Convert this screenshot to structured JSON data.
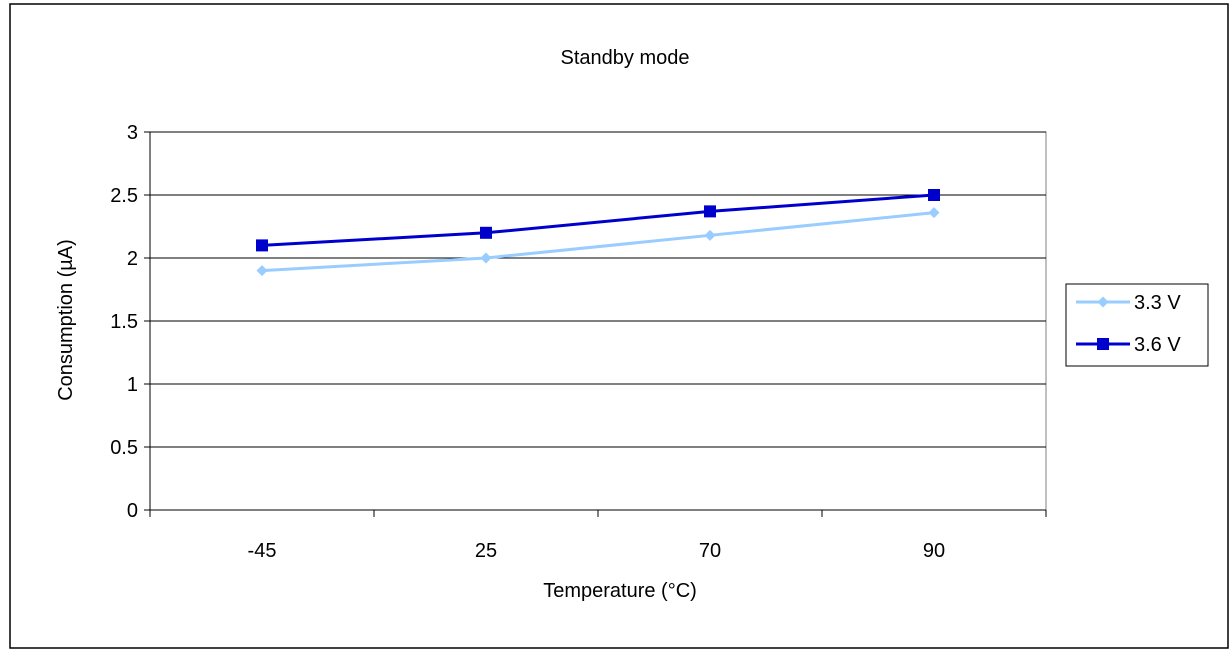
{
  "chart_data": {
    "type": "line",
    "title": "Standby mode",
    "xlabel": "Temperature (°C)",
    "ylabel": "Consumption (µA)",
    "categories": [
      "-45",
      "25",
      "70",
      "90"
    ],
    "ylim": [
      0,
      3
    ],
    "yticks": [
      "0",
      "0.5",
      "1",
      "1.5",
      "2",
      "2.5",
      "3"
    ],
    "grid": true,
    "legend_position": "right",
    "series": [
      {
        "name": "3.3 V",
        "values": [
          1.9,
          2.0,
          2.18,
          2.36
        ],
        "color": "#99ccff",
        "marker": "diamond"
      },
      {
        "name": "3.6 V",
        "values": [
          2.1,
          2.2,
          2.37,
          2.5
        ],
        "color": "#0000cc",
        "marker": "square"
      }
    ]
  }
}
